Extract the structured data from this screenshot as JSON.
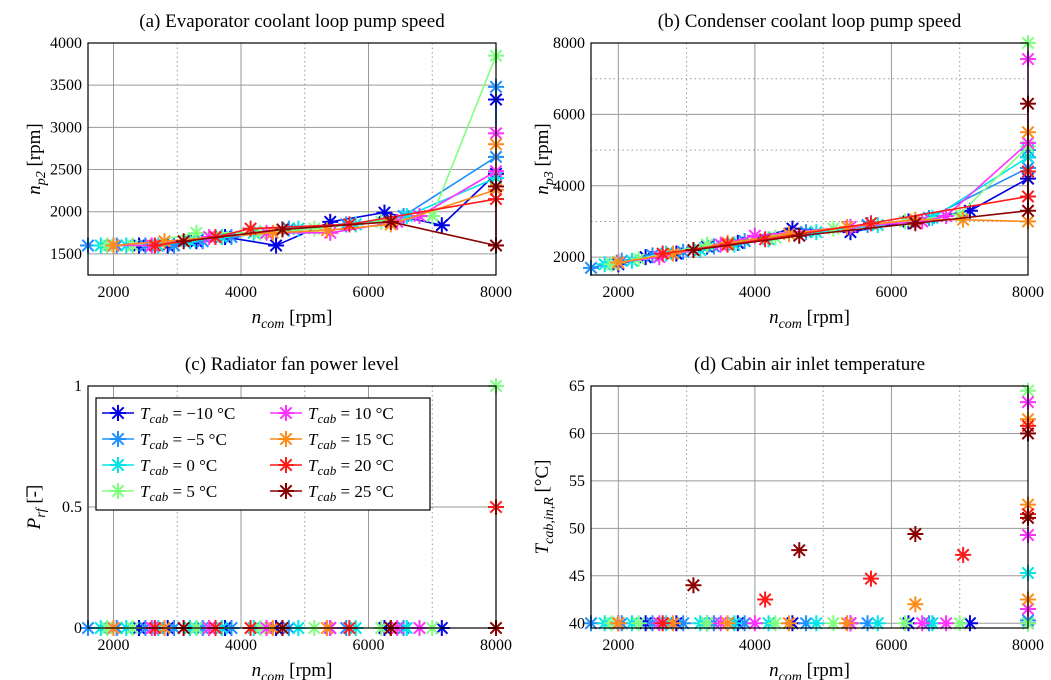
{
  "series_styles": [
    {
      "color": "#0000e6",
      "prefix": "T",
      "sub": "cab",
      "rest": " = −10 °C"
    },
    {
      "color": "#1e90ff",
      "prefix": "T",
      "sub": "cab",
      "rest": " = −5 °C"
    },
    {
      "color": "#00e6e6",
      "prefix": "T",
      "sub": "cab",
      "rest": " = 0 °C"
    },
    {
      "color": "#80ff80",
      "prefix": "T",
      "sub": "cab",
      "rest": " = 5 °C"
    },
    {
      "color": "#ff33ff",
      "prefix": "T",
      "sub": "cab",
      "rest": " = 10 °C"
    },
    {
      "color": "#ff8c1a",
      "prefix": "T",
      "sub": "cab",
      "rest": " = 15 °C"
    },
    {
      "color": "#ff1a1a",
      "prefix": "T",
      "sub": "cab",
      "rest": " = 20 °C"
    },
    {
      "color": "#8b0000",
      "prefix": "T",
      "sub": "cab",
      "rest": " = 25 °C"
    }
  ],
  "chart_data": [
    {
      "type": "line",
      "title": "(a) Evaporator coolant loop pump speed",
      "xlabel": {
        "main": "n",
        "sub": "com",
        "unit": "[rpm]"
      },
      "ylabel": {
        "main": "n",
        "sub": "p2",
        "unit": "[rpm]"
      },
      "xlim": [
        1600,
        8000
      ],
      "ylim": [
        1250,
        4000
      ],
      "xticks": [
        2000,
        4000,
        6000,
        8000
      ],
      "yticks": [
        1500,
        2000,
        2500,
        3000,
        3500,
        4000
      ],
      "series": [
        {
          "name": "T_cab = −10 °C",
          "x": [
            2000,
            2400,
            2850,
            3300,
            3750,
            4550,
            5400,
            6250,
            7150,
            8000,
            8000
          ],
          "y": [
            1600,
            1600,
            1600,
            1650,
            1700,
            1600,
            1880,
            1990,
            1840,
            2450,
            3330
          ]
        },
        {
          "name": "T_cab = −5 °C",
          "x": [
            1600,
            2050,
            2500,
            2950,
            3400,
            3850,
            4750,
            5650,
            6550,
            8000,
            8000
          ],
          "y": [
            1600,
            1600,
            1600,
            1600,
            1650,
            1700,
            1800,
            1850,
            1950,
            2650,
            3480
          ]
        },
        {
          "name": "T_cab = 0 °C",
          "x": [
            1800,
            2200,
            2700,
            3200,
            3700,
            4200,
            4900,
            5800,
            6600,
            8000
          ],
          "y": [
            1600,
            1600,
            1600,
            1650,
            1700,
            1750,
            1800,
            1850,
            1950,
            2400
          ]
        },
        {
          "name": "T_cab = 5 °C",
          "x": [
            1900,
            2300,
            3300,
            4300,
            5150,
            6200,
            7000,
            8000
          ],
          "y": [
            1600,
            1600,
            1750,
            1750,
            1800,
            1880,
            1950,
            3850
          ]
        },
        {
          "name": "T_cab = 10 °C",
          "x": [
            2000,
            2600,
            3500,
            4400,
            5400,
            6450,
            6800,
            8000,
            8000
          ],
          "y": [
            1600,
            1600,
            1700,
            1750,
            1750,
            1880,
            1950,
            2480,
            2930
          ]
        },
        {
          "name": "T_cab = 15 °C",
          "x": [
            2000,
            2800,
            3600,
            4500,
            5350,
            6350,
            8000,
            8000
          ],
          "y": [
            1600,
            1650,
            1700,
            1750,
            1780,
            1850,
            2260,
            2800
          ]
        },
        {
          "name": "T_cab = 20 °C",
          "x": [
            2650,
            3600,
            4150,
            5700,
            8000
          ],
          "y": [
            1600,
            1700,
            1800,
            1850,
            2150
          ]
        },
        {
          "name": "T_cab = 25 °C",
          "x": [
            3100,
            4650,
            6350,
            8000,
            8000
          ],
          "y": [
            1650,
            1790,
            1880,
            1600,
            2300
          ]
        }
      ]
    },
    {
      "type": "line",
      "title": "(b) Condenser coolant loop pump speed",
      "xlabel": {
        "main": "n",
        "sub": "com",
        "unit": "[rpm]"
      },
      "ylabel": {
        "main": "n",
        "sub": "p3",
        "unit": "[rpm]"
      },
      "xlim": [
        1600,
        8000
      ],
      "ylim": [
        1500,
        8000
      ],
      "xticks": [
        2000,
        4000,
        6000,
        8000
      ],
      "yticks": [
        2000,
        4000,
        6000,
        8000
      ],
      "series": [
        {
          "name": "T_cab = −10 °C",
          "x": [
            2000,
            2400,
            2850,
            3300,
            3750,
            4550,
            5400,
            6250,
            7150,
            8000,
            8000
          ],
          "y": [
            1800,
            2000,
            2100,
            2300,
            2400,
            2800,
            2700,
            3000,
            3300,
            4200,
            4800
          ]
        },
        {
          "name": "T_cab = −5 °C",
          "x": [
            1600,
            2050,
            2500,
            2950,
            3400,
            3850,
            4750,
            5650,
            6550,
            8000,
            8000
          ],
          "y": [
            1700,
            1900,
            2050,
            2150,
            2300,
            2450,
            2700,
            2900,
            3100,
            4500,
            5000
          ]
        },
        {
          "name": "T_cab = 0 °C",
          "x": [
            1800,
            2200,
            2700,
            3200,
            3700,
            4200,
            4900,
            5800,
            6600,
            8000
          ],
          "y": [
            1800,
            1900,
            2100,
            2200,
            2350,
            2500,
            2700,
            2900,
            3100,
            4800
          ]
        },
        {
          "name": "T_cab = 5 °C",
          "x": [
            1900,
            2300,
            3300,
            4300,
            5150,
            6200,
            7000,
            8000,
            8000
          ],
          "y": [
            1800,
            1950,
            2350,
            2550,
            2800,
            3000,
            3200,
            5100,
            8000
          ]
        },
        {
          "name": "T_cab = 10 °C",
          "x": [
            2000,
            2600,
            3500,
            4000,
            5400,
            6450,
            6800,
            8000,
            8000
          ],
          "y": [
            1850,
            2000,
            2350,
            2600,
            2850,
            3000,
            3150,
            5200,
            7550
          ]
        },
        {
          "name": "T_cab = 15 °C",
          "x": [
            2000,
            2800,
            3600,
            4500,
            5350,
            6350,
            7050,
            8000,
            8000
          ],
          "y": [
            1850,
            2100,
            2400,
            2650,
            2850,
            3050,
            3050,
            3000,
            5500
          ]
        },
        {
          "name": "T_cab = 20 °C",
          "x": [
            2650,
            3600,
            4150,
            5700,
            8000,
            8000
          ],
          "y": [
            2100,
            2350,
            2500,
            2950,
            3700,
            4400
          ]
        },
        {
          "name": "T_cab = 25 °C",
          "x": [
            3100,
            4650,
            6350,
            8000,
            8000
          ],
          "y": [
            2200,
            2600,
            2950,
            3300,
            6300
          ]
        }
      ]
    },
    {
      "type": "scatter",
      "title": "(c) Radiator fan power level",
      "xlabel": {
        "main": "n",
        "sub": "com",
        "unit": "[rpm]"
      },
      "ylabel": {
        "main": "P",
        "sub": "rf",
        "unit": "[-]",
        "overbar": true
      },
      "xlim": [
        1600,
        8000
      ],
      "ylim": [
        0,
        1
      ],
      "xticks": [
        2000,
        4000,
        6000,
        8000
      ],
      "yticks": [
        0,
        0.5,
        1
      ],
      "legend": "top-left",
      "series": [
        {
          "name": "T_cab = −10 °C",
          "x": [
            2000,
            2400,
            2850,
            3300,
            3750,
            4550,
            5400,
            6250,
            7150
          ],
          "y": [
            0,
            0,
            0,
            0,
            0,
            0,
            0,
            0,
            0
          ]
        },
        {
          "name": "T_cab = −5 °C",
          "x": [
            1600,
            2050,
            2500,
            2950,
            3400,
            3850,
            4750,
            5650,
            6550
          ],
          "y": [
            0,
            0,
            0,
            0,
            0,
            0,
            0,
            0,
            0
          ]
        },
        {
          "name": "T_cab = 0 °C",
          "x": [
            1800,
            2200,
            2700,
            3200,
            3700,
            4200,
            4900,
            5800,
            6600
          ],
          "y": [
            0,
            0,
            0,
            0,
            0,
            0,
            0,
            0,
            0
          ]
        },
        {
          "name": "T_cab = 5 °C",
          "x": [
            1900,
            2300,
            3300,
            4300,
            5150,
            6200,
            7000,
            8000
          ],
          "y": [
            0,
            0,
            0,
            0,
            0,
            0,
            0,
            1
          ]
        },
        {
          "name": "T_cab = 10 °C",
          "x": [
            2000,
            2600,
            3500,
            4400,
            5400,
            6450,
            6800
          ],
          "y": [
            0,
            0,
            0,
            0,
            0,
            0,
            0
          ]
        },
        {
          "name": "T_cab = 15 °C",
          "x": [
            2000,
            2800,
            3600,
            4500,
            5350,
            6350
          ],
          "y": [
            0,
            0,
            0,
            0,
            0,
            0
          ]
        },
        {
          "name": "T_cab = 20 °C",
          "x": [
            2650,
            3600,
            4150,
            5700,
            8000
          ],
          "y": [
            0,
            0,
            0,
            0,
            0.5
          ]
        },
        {
          "name": "T_cab = 25 °C",
          "x": [
            3100,
            4650,
            6350,
            8000
          ],
          "y": [
            0,
            0,
            0,
            0
          ]
        }
      ]
    },
    {
      "type": "scatter",
      "title": "(d) Cabin air inlet temperature",
      "xlabel": {
        "main": "n",
        "sub": "com",
        "unit": "[rpm]"
      },
      "ylabel": {
        "main": "T",
        "sub": "cab,in,R",
        "unit": "[°C]"
      },
      "xlim": [
        1600,
        8000
      ],
      "ylim": [
        39.5,
        65
      ],
      "xticks": [
        2000,
        4000,
        6000,
        8000
      ],
      "yticks": [
        40,
        45,
        50,
        55,
        60,
        65
      ],
      "series": [
        {
          "name": "T_cab = −10 °C",
          "x": [
            2000,
            2400,
            2850,
            3300,
            3750,
            4550,
            5400,
            6250,
            7150,
            8000
          ],
          "y": [
            40,
            40,
            40,
            40,
            40,
            40,
            40,
            40,
            40,
            40
          ]
        },
        {
          "name": "T_cab = −5 °C",
          "x": [
            1600,
            2050,
            2500,
            2950,
            3400,
            3850,
            4750,
            5650,
            6550,
            8000
          ],
          "y": [
            40,
            40,
            40,
            40,
            40,
            40,
            40,
            40,
            40,
            40.3
          ]
        },
        {
          "name": "T_cab = 0 °C",
          "x": [
            1800,
            2200,
            2700,
            3200,
            3700,
            4200,
            4900,
            5800,
            6600,
            8000
          ],
          "y": [
            40,
            40,
            40,
            40,
            40,
            40,
            40,
            40,
            40,
            45.3
          ]
        },
        {
          "name": "T_cab = 5 °C",
          "x": [
            1900,
            2300,
            3300,
            4300,
            5150,
            6200,
            7000,
            8000,
            8000
          ],
          "y": [
            40,
            40,
            40,
            40,
            40,
            40,
            40,
            40,
            64.5
          ]
        },
        {
          "name": "T_cab = 10 °C",
          "x": [
            2000,
            2600,
            3500,
            4000,
            5400,
            6450,
            6800,
            8000,
            8000,
            8000
          ],
          "y": [
            40,
            40,
            40,
            40,
            40,
            40,
            40,
            41.5,
            49.3,
            63.3
          ]
        },
        {
          "name": "T_cab = 15 °C",
          "x": [
            2000,
            2800,
            3600,
            4500,
            5350,
            6350,
            8000,
            8000,
            8000
          ],
          "y": [
            40,
            40,
            40,
            40,
            40,
            42,
            42.5,
            52.5,
            61.5
          ]
        },
        {
          "name": "T_cab = 20 °C",
          "x": [
            2650,
            4150,
            5700,
            7050,
            8000,
            8000
          ],
          "y": [
            40,
            42.5,
            44.7,
            47.2,
            51.5,
            60.8
          ]
        },
        {
          "name": "T_cab = 25 °C",
          "x": [
            3100,
            4650,
            6350,
            8000,
            8000
          ],
          "y": [
            44,
            47.7,
            49.4,
            51.1,
            60
          ]
        }
      ]
    }
  ]
}
